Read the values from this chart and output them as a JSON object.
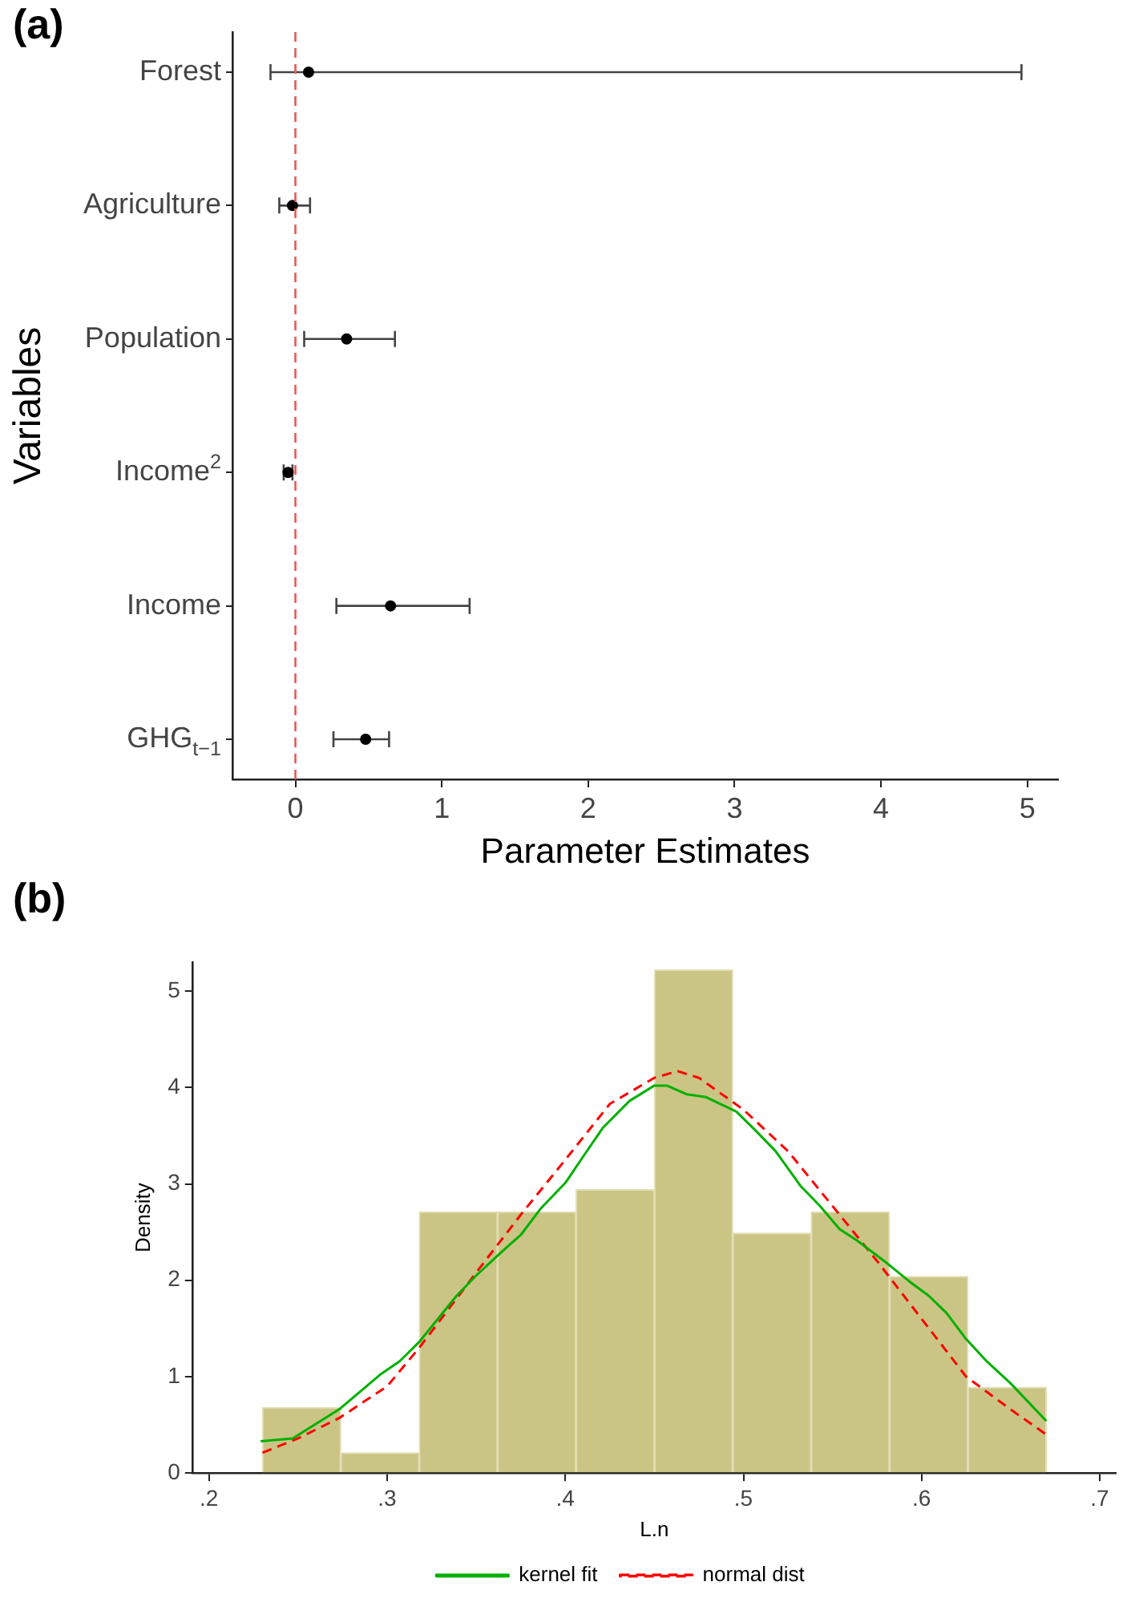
{
  "chart_data": [
    {
      "type": "scatter",
      "title": "(a)",
      "xlabel": "Parameter Estimates",
      "ylabel": "Variables",
      "orientation": "horizontal",
      "categories": [
        "Forest",
        "Agriculture",
        "Population",
        "Income$^{2}$",
        "Income",
        "GHG$_{t−1}$"
      ],
      "values": [
        0.09,
        -0.02,
        0.35,
        -0.05,
        0.65,
        0.48
      ],
      "errors": [
        [
          -0.17,
          4.96
        ],
        [
          -0.11,
          0.1
        ],
        [
          0.06,
          0.68
        ],
        [
          -0.08,
          -0.02
        ],
        [
          0.28,
          1.19
        ],
        [
          0.26,
          0.64
        ]
      ],
      "color": "#000000",
      "marker": "circle",
      "xlim": [
        -0.43,
        5.21
      ],
      "xticks": [
        0,
        1,
        2,
        3,
        4,
        5
      ],
      "ref_lines": [
        {
          "axis": "x",
          "value": 0,
          "color": "#e8585a",
          "line_style": "dashed"
        }
      ],
      "grid": false,
      "legend": false
    },
    {
      "type": "histogram",
      "title": "(b)",
      "xlabel": "L.n",
      "ylabel": "Density",
      "color": "#cbc585",
      "bins": [
        0.23,
        0.274,
        0.318,
        0.362,
        0.406,
        0.45,
        0.494,
        0.538,
        0.582,
        0.626,
        0.67
      ],
      "values": [
        0.68,
        0.21,
        2.71,
        2.71,
        2.94,
        5.22,
        2.49,
        2.71,
        2.04,
        0.89
      ],
      "series": [
        {
          "name": "kernel fit",
          "type": "line",
          "color": "#00b000",
          "line_style": "solid",
          "x": [
            0.229,
            0.247,
            0.273,
            0.296,
            0.307,
            0.318,
            0.339,
            0.35,
            0.364,
            0.375,
            0.386,
            0.4,
            0.411,
            0.421,
            0.436,
            0.45,
            0.457,
            0.468,
            0.479,
            0.496,
            0.507,
            0.518,
            0.532,
            0.543,
            0.554,
            0.564,
            0.579,
            0.593,
            0.604,
            0.614,
            0.625,
            0.636,
            0.65,
            0.67
          ],
          "values": [
            0.33,
            0.36,
            0.66,
            1.02,
            1.16,
            1.36,
            1.84,
            2.05,
            2.29,
            2.47,
            2.74,
            3.01,
            3.31,
            3.58,
            3.86,
            4.02,
            4.02,
            3.93,
            3.9,
            3.75,
            3.55,
            3.34,
            2.98,
            2.77,
            2.53,
            2.41,
            2.2,
            1.99,
            1.84,
            1.66,
            1.39,
            1.17,
            0.93,
            0.54
          ]
        },
        {
          "name": "normal dist",
          "type": "line",
          "color": "#ff0000",
          "line_style": "dashed",
          "x": [
            0.23,
            0.25,
            0.273,
            0.3,
            0.318,
            0.35,
            0.375,
            0.4,
            0.425,
            0.45,
            0.463,
            0.475,
            0.5,
            0.525,
            0.55,
            0.575,
            0.6,
            0.625,
            0.65,
            0.67
          ],
          "values": [
            0.21,
            0.36,
            0.57,
            0.9,
            1.3,
            2.08,
            2.68,
            3.25,
            3.83,
            4.1,
            4.17,
            4.1,
            3.77,
            3.34,
            2.77,
            2.2,
            1.6,
            1.0,
            0.66,
            0.4
          ]
        }
      ],
      "xlim": [
        0.191,
        0.709
      ],
      "xticks": [
        {
          "value": 0.2,
          "label": ".2"
        },
        {
          "value": 0.3,
          "label": ".3"
        },
        {
          "value": 0.4,
          "label": ".4"
        },
        {
          "value": 0.5,
          "label": ".5"
        },
        {
          "value": 0.6,
          "label": ".6"
        },
        {
          "value": 0.7,
          "label": ".7"
        }
      ],
      "ylim": [
        0,
        5.3
      ],
      "yticks": [
        0,
        1,
        2,
        3,
        4,
        5
      ],
      "grid": false,
      "legend": "bottom"
    }
  ]
}
